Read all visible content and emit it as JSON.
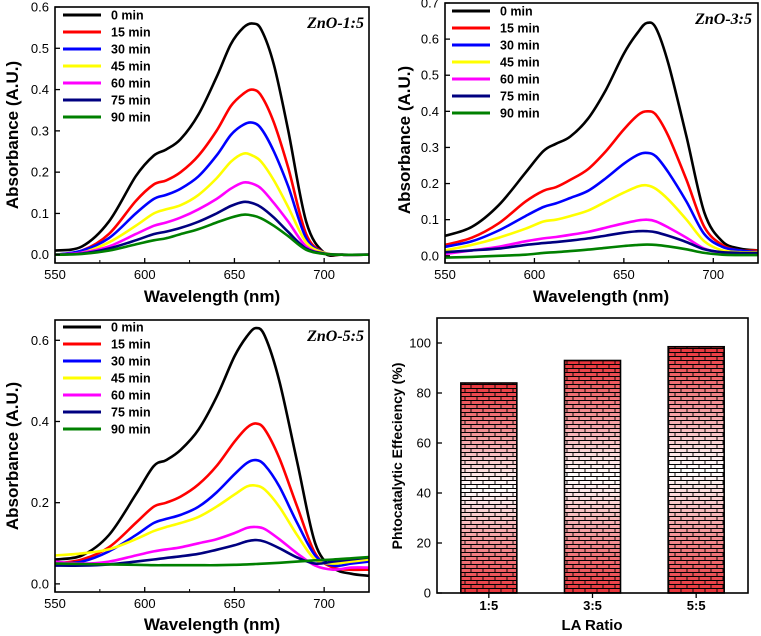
{
  "chart_data": [
    {
      "id": "p1",
      "type": "line",
      "title": "ZnO-1:5",
      "xlabel": "Wavelength (nm)",
      "ylabel": "Absorbance (A.U.)",
      "xlim": [
        550,
        725
      ],
      "ylim": [
        -0.02,
        0.6
      ],
      "xticks": [
        550,
        600,
        650,
        700
      ],
      "yticks": [
        0.0,
        0.1,
        0.2,
        0.3,
        0.4,
        0.5,
        0.6
      ],
      "x": [
        550,
        565,
        580,
        595,
        605,
        612,
        620,
        630,
        640,
        648,
        655,
        660,
        665,
        672,
        680,
        690,
        700,
        710,
        725
      ],
      "series": [
        {
          "name": "0 min",
          "color": "#000000",
          "values": [
            0.01,
            0.02,
            0.08,
            0.19,
            0.24,
            0.255,
            0.28,
            0.34,
            0.43,
            0.51,
            0.55,
            0.56,
            0.545,
            0.46,
            0.3,
            0.08,
            0.005,
            0.0,
            0.0
          ]
        },
        {
          "name": "15 min",
          "color": "#ff0000",
          "values": [
            0.0,
            0.01,
            0.05,
            0.13,
            0.17,
            0.18,
            0.2,
            0.24,
            0.3,
            0.36,
            0.39,
            0.4,
            0.385,
            0.32,
            0.21,
            0.05,
            0.005,
            0.0,
            0.0
          ]
        },
        {
          "name": "30 min",
          "color": "#0000ff",
          "values": [
            0.0,
            0.01,
            0.04,
            0.1,
            0.135,
            0.145,
            0.16,
            0.19,
            0.24,
            0.29,
            0.315,
            0.32,
            0.305,
            0.25,
            0.165,
            0.04,
            0.005,
            0.0,
            0.0
          ]
        },
        {
          "name": "45 min",
          "color": "#ffff00",
          "values": [
            0.0,
            0.005,
            0.03,
            0.07,
            0.1,
            0.11,
            0.12,
            0.145,
            0.185,
            0.225,
            0.245,
            0.24,
            0.225,
            0.18,
            0.115,
            0.03,
            0.005,
            0.0,
            0.0
          ]
        },
        {
          "name": "60 min",
          "color": "#ff00ff",
          "values": [
            0.0,
            0.005,
            0.02,
            0.05,
            0.07,
            0.078,
            0.09,
            0.11,
            0.135,
            0.16,
            0.175,
            0.172,
            0.16,
            0.125,
            0.08,
            0.02,
            0.003,
            0.0,
            0.0
          ]
        },
        {
          "name": "75 min",
          "color": "#000080",
          "values": [
            0.0,
            0.003,
            0.015,
            0.035,
            0.05,
            0.056,
            0.065,
            0.08,
            0.1,
            0.118,
            0.128,
            0.125,
            0.115,
            0.09,
            0.055,
            0.015,
            0.003,
            0.0,
            0.0
          ]
        },
        {
          "name": "90 min",
          "color": "#008000",
          "values": [
            0.0,
            0.002,
            0.01,
            0.025,
            0.035,
            0.04,
            0.05,
            0.062,
            0.078,
            0.09,
            0.097,
            0.095,
            0.088,
            0.07,
            0.045,
            0.012,
            0.002,
            0.0,
            0.0
          ]
        }
      ],
      "legend": "top-left"
    },
    {
      "id": "p2",
      "type": "line",
      "title": "ZnO-3:5",
      "xlabel": "Wavelength (nm)",
      "ylabel": "Absorbance (A.U.)",
      "xlim": [
        550,
        725
      ],
      "ylim": [
        -0.02,
        0.7
      ],
      "xticks": [
        550,
        600,
        650,
        700
      ],
      "yticks": [
        0.0,
        0.1,
        0.2,
        0.3,
        0.4,
        0.5,
        0.6,
        0.7
      ],
      "x": [
        550,
        565,
        580,
        595,
        605,
        612,
        620,
        630,
        640,
        650,
        658,
        663,
        668,
        675,
        685,
        695,
        705,
        715,
        725
      ],
      "series": [
        {
          "name": "0 min",
          "color": "#000000",
          "values": [
            0.055,
            0.08,
            0.14,
            0.23,
            0.29,
            0.31,
            0.33,
            0.38,
            0.46,
            0.56,
            0.62,
            0.645,
            0.63,
            0.53,
            0.33,
            0.12,
            0.04,
            0.02,
            0.015
          ]
        },
        {
          "name": "15 min",
          "color": "#ff0000",
          "values": [
            0.03,
            0.05,
            0.09,
            0.15,
            0.18,
            0.19,
            0.21,
            0.24,
            0.29,
            0.35,
            0.39,
            0.4,
            0.39,
            0.33,
            0.21,
            0.08,
            0.03,
            0.015,
            0.015
          ]
        },
        {
          "name": "30 min",
          "color": "#0000ff",
          "values": [
            0.025,
            0.04,
            0.07,
            0.11,
            0.135,
            0.145,
            0.16,
            0.18,
            0.215,
            0.255,
            0.28,
            0.285,
            0.275,
            0.23,
            0.15,
            0.06,
            0.025,
            0.015,
            0.01
          ]
        },
        {
          "name": "45 min",
          "color": "#ffff00",
          "values": [
            0.015,
            0.03,
            0.05,
            0.075,
            0.095,
            0.1,
            0.11,
            0.125,
            0.15,
            0.175,
            0.192,
            0.195,
            0.185,
            0.155,
            0.1,
            0.04,
            0.015,
            0.01,
            0.01
          ]
        },
        {
          "name": "60 min",
          "color": "#ff00ff",
          "values": [
            0.005,
            0.015,
            0.025,
            0.04,
            0.048,
            0.052,
            0.058,
            0.066,
            0.078,
            0.09,
            0.098,
            0.1,
            0.095,
            0.078,
            0.05,
            0.02,
            0.008,
            0.005,
            0.005
          ]
        },
        {
          "name": "75 min",
          "color": "#000080",
          "values": [
            0.01,
            0.015,
            0.02,
            0.03,
            0.035,
            0.038,
            0.042,
            0.048,
            0.056,
            0.064,
            0.068,
            0.068,
            0.065,
            0.055,
            0.038,
            0.018,
            0.01,
            0.008,
            0.008
          ]
        },
        {
          "name": "90 min",
          "color": "#008000",
          "values": [
            -0.005,
            -0.003,
            0.0,
            0.003,
            0.008,
            0.01,
            0.013,
            0.017,
            0.022,
            0.027,
            0.03,
            0.031,
            0.03,
            0.026,
            0.018,
            0.008,
            0.003,
            0.002,
            0.002
          ]
        }
      ],
      "legend": "top-left"
    },
    {
      "id": "p3",
      "type": "line",
      "title": "ZnO-5:5",
      "xlabel": "Wavelength (nm)",
      "ylabel": "Absorbance (A.U.)",
      "xlim": [
        550,
        725
      ],
      "ylim": [
        -0.02,
        0.65
      ],
      "xticks": [
        550,
        600,
        650,
        700
      ],
      "yticks": [
        0.0,
        0.2,
        0.4,
        0.6
      ],
      "x": [
        550,
        565,
        580,
        595,
        605,
        612,
        620,
        630,
        640,
        650,
        657,
        662,
        667,
        675,
        685,
        695,
        705,
        715,
        725
      ],
      "series": [
        {
          "name": "0 min",
          "color": "#000000",
          "values": [
            0.06,
            0.07,
            0.12,
            0.22,
            0.29,
            0.305,
            0.33,
            0.38,
            0.46,
            0.56,
            0.61,
            0.63,
            0.61,
            0.5,
            0.3,
            0.1,
            0.04,
            0.025,
            0.02
          ]
        },
        {
          "name": "15 min",
          "color": "#ff0000",
          "values": [
            0.05,
            0.06,
            0.09,
            0.15,
            0.19,
            0.2,
            0.215,
            0.245,
            0.29,
            0.35,
            0.385,
            0.395,
            0.38,
            0.31,
            0.19,
            0.075,
            0.04,
            0.035,
            0.035
          ]
        },
        {
          "name": "30 min",
          "color": "#0000ff",
          "values": [
            0.05,
            0.055,
            0.08,
            0.12,
            0.15,
            0.16,
            0.17,
            0.19,
            0.225,
            0.27,
            0.298,
            0.305,
            0.292,
            0.24,
            0.15,
            0.07,
            0.045,
            0.05,
            0.055
          ]
        },
        {
          "name": "45 min",
          "color": "#ffff00",
          "values": [
            0.07,
            0.075,
            0.085,
            0.11,
            0.13,
            0.14,
            0.15,
            0.165,
            0.19,
            0.22,
            0.24,
            0.242,
            0.232,
            0.19,
            0.12,
            0.06,
            0.05,
            0.055,
            0.06
          ]
        },
        {
          "name": "60 min",
          "color": "#ff00ff",
          "values": [
            0.055,
            0.05,
            0.055,
            0.07,
            0.08,
            0.085,
            0.09,
            0.1,
            0.11,
            0.125,
            0.138,
            0.14,
            0.135,
            0.11,
            0.075,
            0.045,
            0.035,
            0.04,
            0.04
          ]
        },
        {
          "name": "75 min",
          "color": "#000080",
          "values": [
            0.045,
            0.045,
            0.048,
            0.055,
            0.06,
            0.064,
            0.068,
            0.074,
            0.084,
            0.095,
            0.105,
            0.108,
            0.104,
            0.088,
            0.065,
            0.05,
            0.055,
            0.06,
            0.065
          ]
        },
        {
          "name": "90 min",
          "color": "#008000",
          "values": [
            0.05,
            0.049,
            0.048,
            0.047,
            0.046,
            0.046,
            0.046,
            0.046,
            0.046,
            0.047,
            0.048,
            0.049,
            0.05,
            0.052,
            0.055,
            0.058,
            0.06,
            0.063,
            0.066
          ]
        }
      ],
      "legend": "top-left"
    },
    {
      "id": "p4",
      "type": "bar",
      "title": "",
      "xlabel": "LA Ratio",
      "ylabel": "Phtocatalytic Effeciency (%)",
      "categories": [
        "1:5",
        "3:5",
        "5:5"
      ],
      "values": [
        84,
        93,
        98.5
      ],
      "ylim": [
        0,
        110
      ],
      "yticks": [
        0,
        20,
        40,
        60,
        80,
        100
      ],
      "fill": "red-to-white brick pattern",
      "colors": {
        "bar_edge": "#000000",
        "gradient_end": "#e8333a",
        "gradient_mid": "#ffffff",
        "brick_line": "#000000"
      }
    }
  ]
}
